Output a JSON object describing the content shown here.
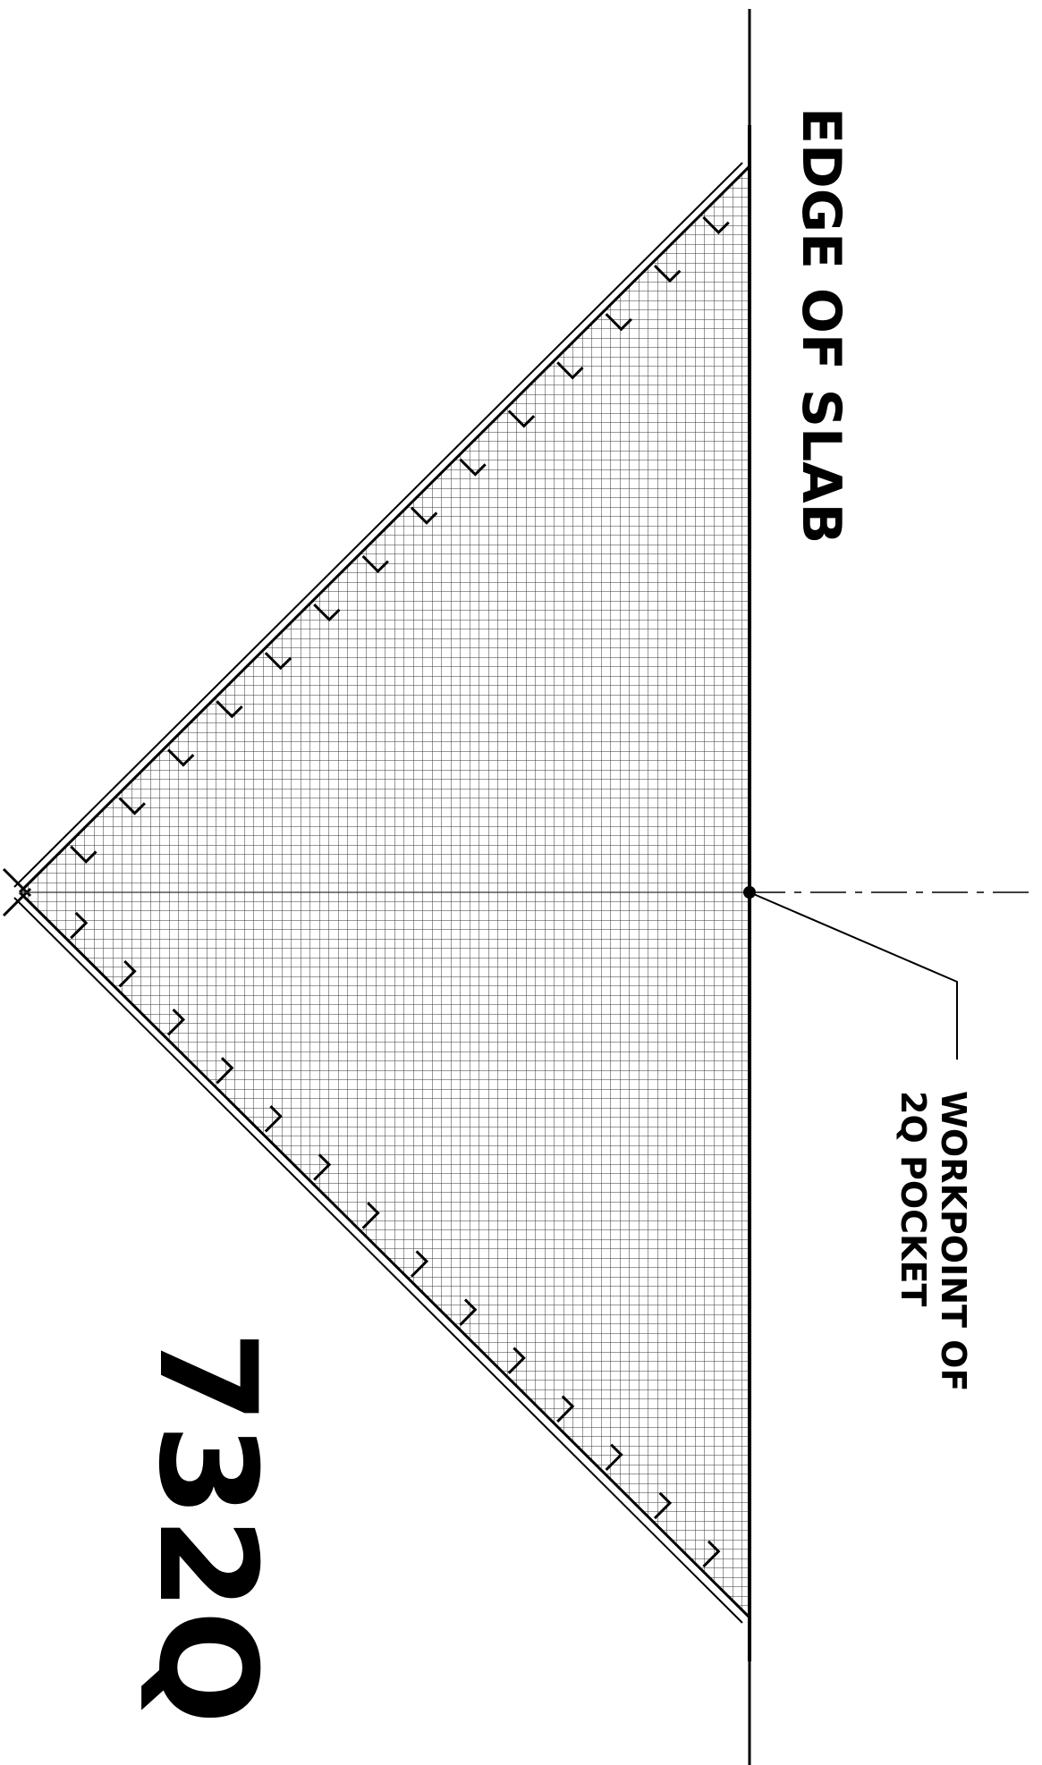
{
  "drawing": {
    "edge_label": "EDGE OF SLAB",
    "workpoint_label_line1": "WORKPOINT OF",
    "workpoint_label_line2": "2Q POCKET",
    "mark_label": "732Q",
    "line_color": "#000000",
    "hatch_color": "#333333",
    "background": "#ffffff"
  }
}
